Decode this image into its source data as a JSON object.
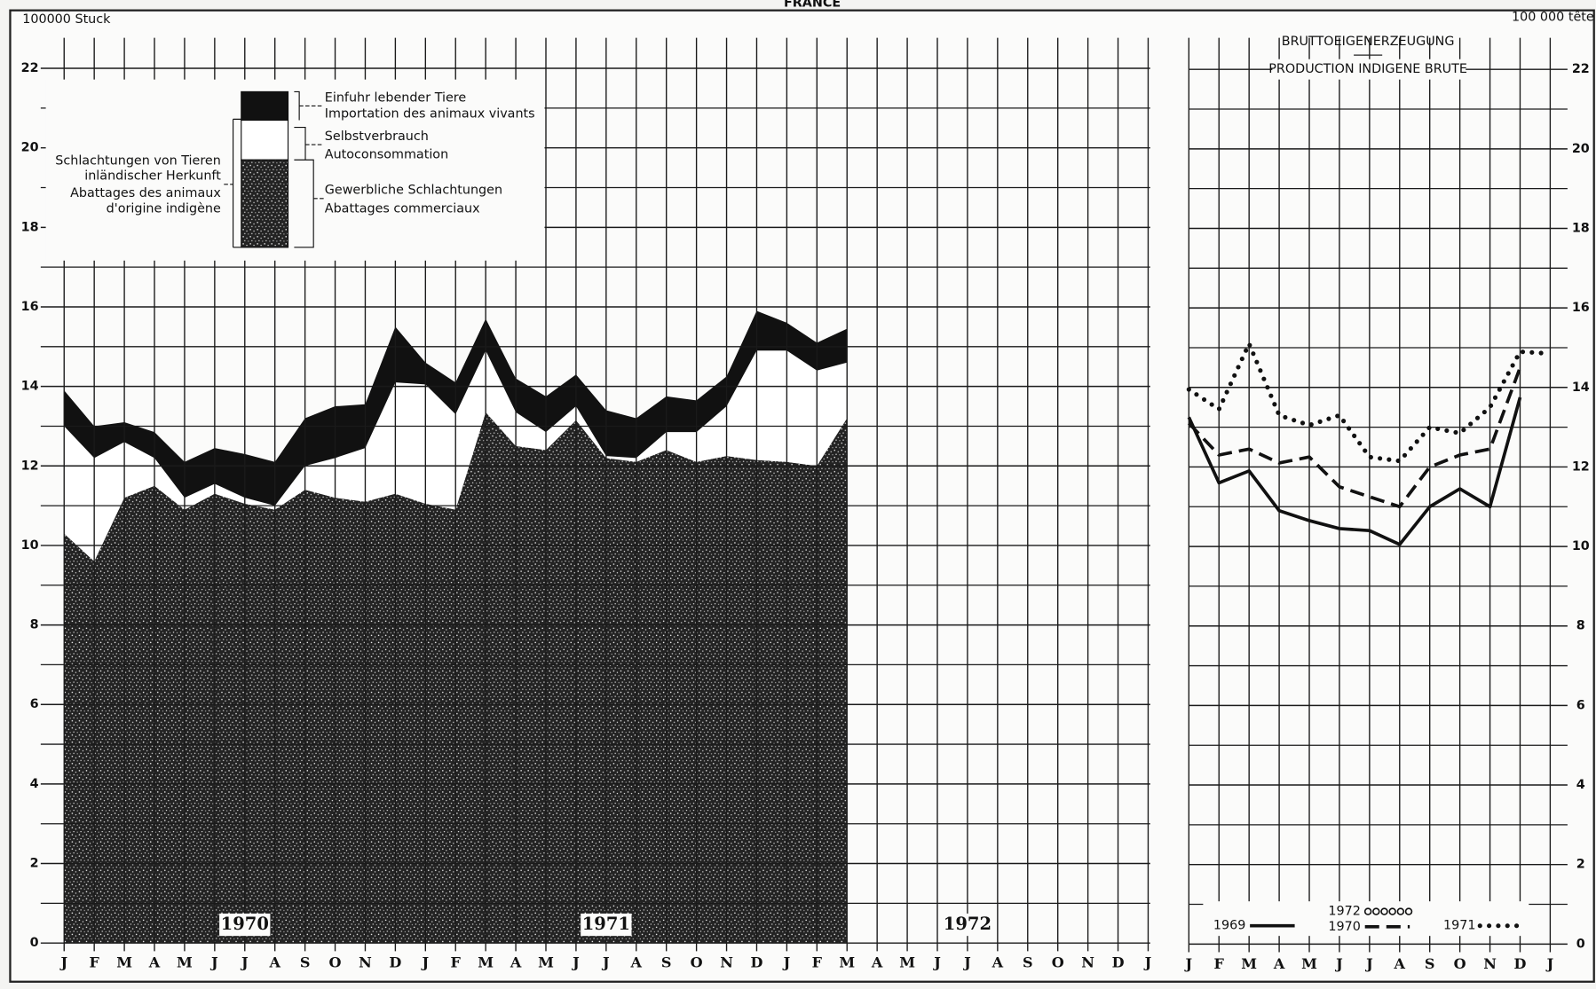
{
  "title": "FRANCE",
  "chart_data": [
    {
      "type": "stacked_area",
      "y_unit": "100000 Stuck",
      "categories": [
        "J",
        "F",
        "M",
        "A",
        "M",
        "J",
        "J",
        "A",
        "S",
        "O",
        "N",
        "D",
        "J",
        "F",
        "M",
        "A",
        "M",
        "J",
        "J",
        "A",
        "S",
        "O",
        "N",
        "D",
        "J",
        "F",
        "M",
        "A",
        "M",
        "J",
        "J",
        "A",
        "S",
        "O",
        "N",
        "D",
        "J"
      ],
      "years": [
        "1970",
        "1971",
        "1972"
      ],
      "group_label": [
        "Schlachtungen von Tieren",
        "inländischer Herkunft",
        "Abattages des animaux",
        "d'origine indigène"
      ],
      "series": [
        {
          "name": "Gewerbliche Schlachtungen",
          "name_fr": "Abattages commerciaux",
          "color": "#232323",
          "texture": "stipple",
          "values": [
            10.3,
            9.6,
            11.2,
            11.5,
            10.9,
            11.3,
            11.05,
            10.9,
            11.4,
            11.2,
            11.1,
            11.3,
            11.05,
            10.9,
            13.35,
            12.5,
            12.4,
            13.15,
            12.2,
            12.1,
            12.4,
            12.1,
            12.25,
            12.15,
            12.1,
            12.0,
            13.2,
            null,
            null,
            null,
            null,
            null,
            null,
            null,
            null,
            null,
            null
          ]
        },
        {
          "name": "Selbstverbrauch",
          "name_fr": "Autoconsommation",
          "color": "#ffffff",
          "values": [
            2.7,
            2.6,
            1.4,
            0.7,
            0.3,
            0.25,
            0.15,
            0.1,
            0.6,
            1.0,
            1.35,
            2.8,
            3.0,
            2.4,
            1.55,
            0.85,
            0.45,
            0.35,
            0.05,
            0.1,
            0.45,
            0.75,
            1.25,
            2.75,
            2.8,
            2.4,
            1.4,
            null,
            null,
            null,
            null,
            null,
            null,
            null,
            null,
            null,
            null
          ]
        },
        {
          "name": "Einfuhr lebender Tiere",
          "name_fr": "Importation des animaux vivants",
          "color": "#111111",
          "values": [
            0.9,
            0.8,
            0.5,
            0.65,
            0.9,
            0.9,
            1.1,
            1.1,
            1.2,
            1.3,
            1.1,
            1.4,
            0.55,
            0.8,
            0.8,
            0.85,
            0.9,
            0.8,
            1.15,
            1.0,
            0.9,
            0.8,
            0.75,
            1.0,
            0.7,
            0.7,
            0.85,
            null,
            null,
            null,
            null,
            null,
            null,
            null,
            null,
            null,
            null
          ]
        }
      ],
      "ylim": [
        0,
        22
      ],
      "yticks": [
        0,
        2,
        4,
        6,
        8,
        10,
        12,
        14,
        16,
        18,
        20,
        22
      ],
      "grid": true,
      "minor_grid": true
    },
    {
      "type": "line",
      "title": "BRUTTOEIGENERZEUGUNG",
      "subtitle": "PRODUCTION INDIGENE BRUTE",
      "y_unit": "100 000 tête",
      "categories": [
        "J",
        "F",
        "M",
        "A",
        "M",
        "J",
        "J",
        "A",
        "S",
        "O",
        "N",
        "D",
        "J"
      ],
      "series": [
        {
          "name": "1969",
          "color": "#111111",
          "style": "solid",
          "values": [
            13.25,
            11.6,
            11.9,
            10.9,
            10.65,
            10.45,
            10.4,
            10.05,
            11.0,
            11.45,
            11.0,
            13.75,
            null
          ]
        },
        {
          "name": "1970",
          "color": "#111111",
          "style": "dashed",
          "values": [
            13.1,
            12.3,
            12.45,
            12.1,
            12.25,
            11.5,
            11.25,
            11.0,
            12.0,
            12.3,
            12.45,
            14.5,
            null
          ]
        },
        {
          "name": "1971",
          "color": "#111111",
          "style": "dotted",
          "values": [
            13.95,
            13.45,
            15.1,
            13.3,
            13.05,
            13.3,
            12.25,
            12.15,
            13.0,
            12.85,
            13.5,
            14.9,
            14.85
          ]
        },
        {
          "name": "1972",
          "color": "#111111",
          "style": "circles",
          "values": [
            null,
            null,
            null,
            null,
            null,
            null,
            null,
            null,
            null,
            null,
            null,
            null,
            null
          ]
        }
      ],
      "ylim": [
        0,
        22
      ],
      "yticks": [
        0,
        2,
        4,
        6,
        8,
        10,
        12,
        14,
        16,
        18,
        20,
        22
      ],
      "grid": true,
      "minor_grid": true
    }
  ]
}
